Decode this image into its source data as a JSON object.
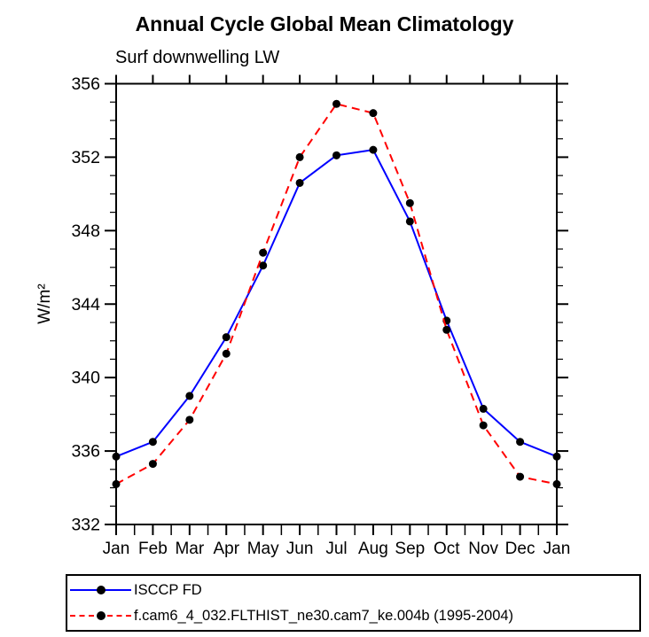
{
  "title": "Annual Cycle Global Mean Climatology",
  "subtitle": "Surf downwelling LW",
  "chart_data": {
    "type": "line",
    "categories": [
      "Jan",
      "Feb",
      "Mar",
      "Apr",
      "May",
      "Jun",
      "Jul",
      "Aug",
      "Sep",
      "Oct",
      "Nov",
      "Dec",
      "Jan"
    ],
    "series": [
      {
        "name": "ISCCP FD",
        "color": "#0000ff",
        "line_style": "solid",
        "marker": "filled-circle",
        "marker_color": "#000000",
        "values": [
          335.7,
          336.5,
          339.0,
          342.2,
          346.1,
          350.6,
          352.1,
          352.4,
          348.5,
          343.1,
          338.3,
          336.5,
          335.7
        ]
      },
      {
        "name": "f.cam6_4_032.FLTHIST_ne30.cam7_ke.004b (1995-2004)",
        "color": "#ff0000",
        "line_style": "dashed",
        "marker": "filled-circle",
        "marker_color": "#000000",
        "values": [
          334.2,
          335.3,
          337.7,
          341.3,
          346.8,
          352.0,
          354.9,
          354.4,
          349.5,
          342.6,
          337.4,
          334.6,
          334.2
        ]
      }
    ],
    "xlabel": "",
    "ylabel": "W/m²",
    "ylim": [
      332,
      356
    ],
    "yticks": [
      332,
      336,
      340,
      344,
      348,
      352,
      356
    ],
    "yminor_step": 1,
    "xminor": "half-step",
    "grid": false,
    "legend_position": "bottom-left-box",
    "frame_color": "#000000",
    "text_color": "#000000",
    "background": "#ffffff"
  }
}
